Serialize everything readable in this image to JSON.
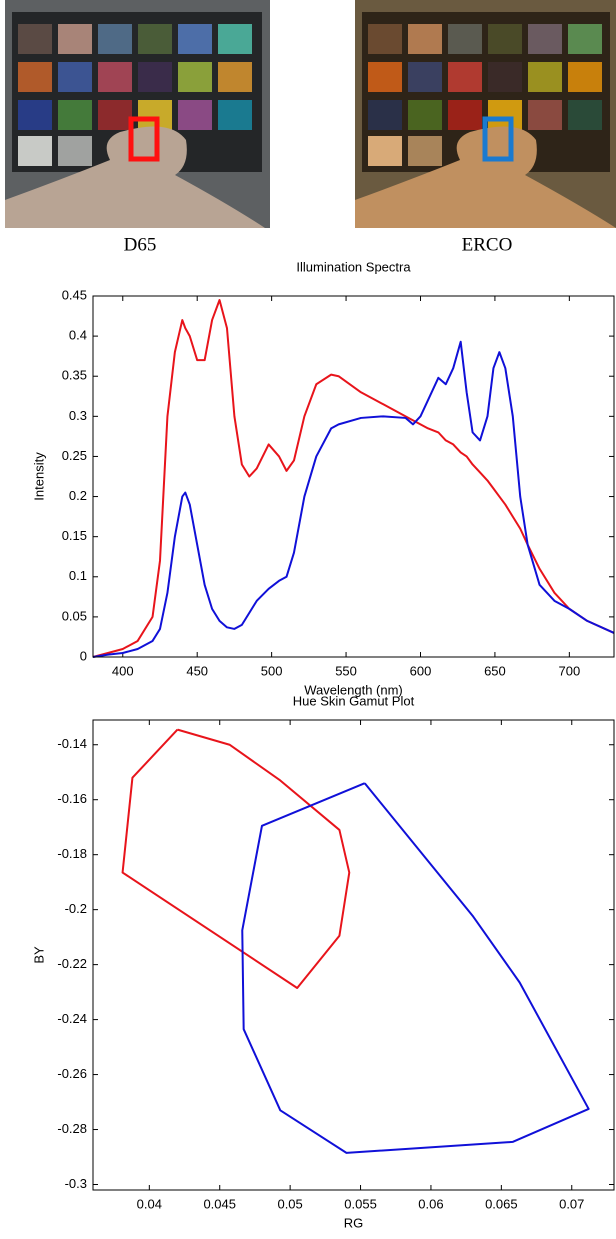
{
  "figure": {
    "captions": [
      "D65",
      "ERCO"
    ]
  },
  "chart_data": [
    {
      "type": "line",
      "title": "Illumination Spectra",
      "xlabel": "Wavelength (nm)",
      "ylabel": "Intensity",
      "x": [
        380,
        390,
        400,
        410,
        420,
        425,
        430,
        435,
        440,
        442,
        445,
        450,
        455,
        460,
        465,
        470,
        475,
        480,
        485,
        490,
        498,
        505,
        510,
        515,
        522,
        530,
        540,
        545,
        560,
        575,
        590,
        595,
        600,
        605,
        612,
        617,
        622,
        627,
        631,
        635,
        640,
        645,
        649,
        653,
        657,
        662,
        667,
        672,
        680,
        690,
        700,
        712,
        730
      ],
      "series": [
        {
          "color": "#e8141b",
          "values": [
            0,
            0.005,
            0.01,
            0.02,
            0.05,
            0.12,
            0.3,
            0.38,
            0.42,
            0.41,
            0.4,
            0.37,
            0.37,
            0.42,
            0.445,
            0.41,
            0.3,
            0.24,
            0.225,
            0.235,
            0.265,
            0.25,
            0.232,
            0.245,
            0.3,
            0.34,
            0.352,
            0.35,
            0.33,
            0.315,
            0.3,
            0.295,
            0.29,
            0.285,
            0.28,
            0.27,
            0.265,
            0.255,
            0.25,
            0.24,
            0.23,
            0.22,
            0.21,
            0.2,
            0.19,
            0.175,
            0.16,
            0.14,
            0.11,
            0.08,
            0.06,
            0.045,
            0.03
          ]
        },
        {
          "color": "#1010d8",
          "values": [
            0,
            0.003,
            0.005,
            0.01,
            0.02,
            0.035,
            0.08,
            0.15,
            0.2,
            0.205,
            0.19,
            0.14,
            0.09,
            0.06,
            0.045,
            0.037,
            0.035,
            0.04,
            0.055,
            0.07,
            0.085,
            0.095,
            0.1,
            0.13,
            0.2,
            0.25,
            0.285,
            0.29,
            0.298,
            0.3,
            0.298,
            0.29,
            0.3,
            0.32,
            0.348,
            0.34,
            0.36,
            0.393,
            0.33,
            0.28,
            0.27,
            0.3,
            0.36,
            0.38,
            0.36,
            0.3,
            0.2,
            0.14,
            0.09,
            0.07,
            0.06,
            0.045,
            0.03
          ]
        }
      ],
      "xlim": [
        380,
        730
      ],
      "xticks": [
        400,
        450,
        500,
        550,
        600,
        650,
        700
      ],
      "ylim": [
        0,
        0.45
      ],
      "yticks": [
        0,
        0.05,
        0.1,
        0.15,
        0.2,
        0.25,
        0.3,
        0.35,
        0.4,
        0.45
      ]
    },
    {
      "type": "line",
      "title": "Hue Skin Gamut Plot",
      "xlabel": "RG",
      "ylabel": "BY",
      "series": [
        {
          "color": "#e8141b",
          "x": [
            0.042,
            0.0457,
            0.0493,
            0.0535,
            0.0542,
            0.0535,
            0.0505,
            0.0381,
            0.0388,
            0.042
          ],
          "values": [
            -0.1345,
            -0.14,
            -0.153,
            -0.171,
            -0.1865,
            -0.2095,
            -0.2285,
            -0.1865,
            -0.152,
            -0.1345
          ]
        },
        {
          "color": "#1010d8",
          "x": [
            0.0553,
            0.063,
            0.0663,
            0.0712,
            0.0658,
            0.054,
            0.0493,
            0.0467,
            0.0466,
            0.048,
            0.0553
          ],
          "values": [
            -0.154,
            -0.2025,
            -0.2265,
            -0.2725,
            -0.2845,
            -0.2885,
            -0.273,
            -0.2435,
            -0.2075,
            -0.1695,
            -0.154
          ]
        }
      ],
      "xlim": [
        0.036,
        0.073
      ],
      "xticks": [
        0.04,
        0.045,
        0.05,
        0.055,
        0.06,
        0.065,
        0.07
      ],
      "ylim": [
        -0.302,
        -0.131
      ],
      "yticks": [
        -0.14,
        -0.16,
        -0.18,
        -0.2,
        -0.22,
        -0.24,
        -0.26,
        -0.28,
        -0.3
      ]
    }
  ]
}
